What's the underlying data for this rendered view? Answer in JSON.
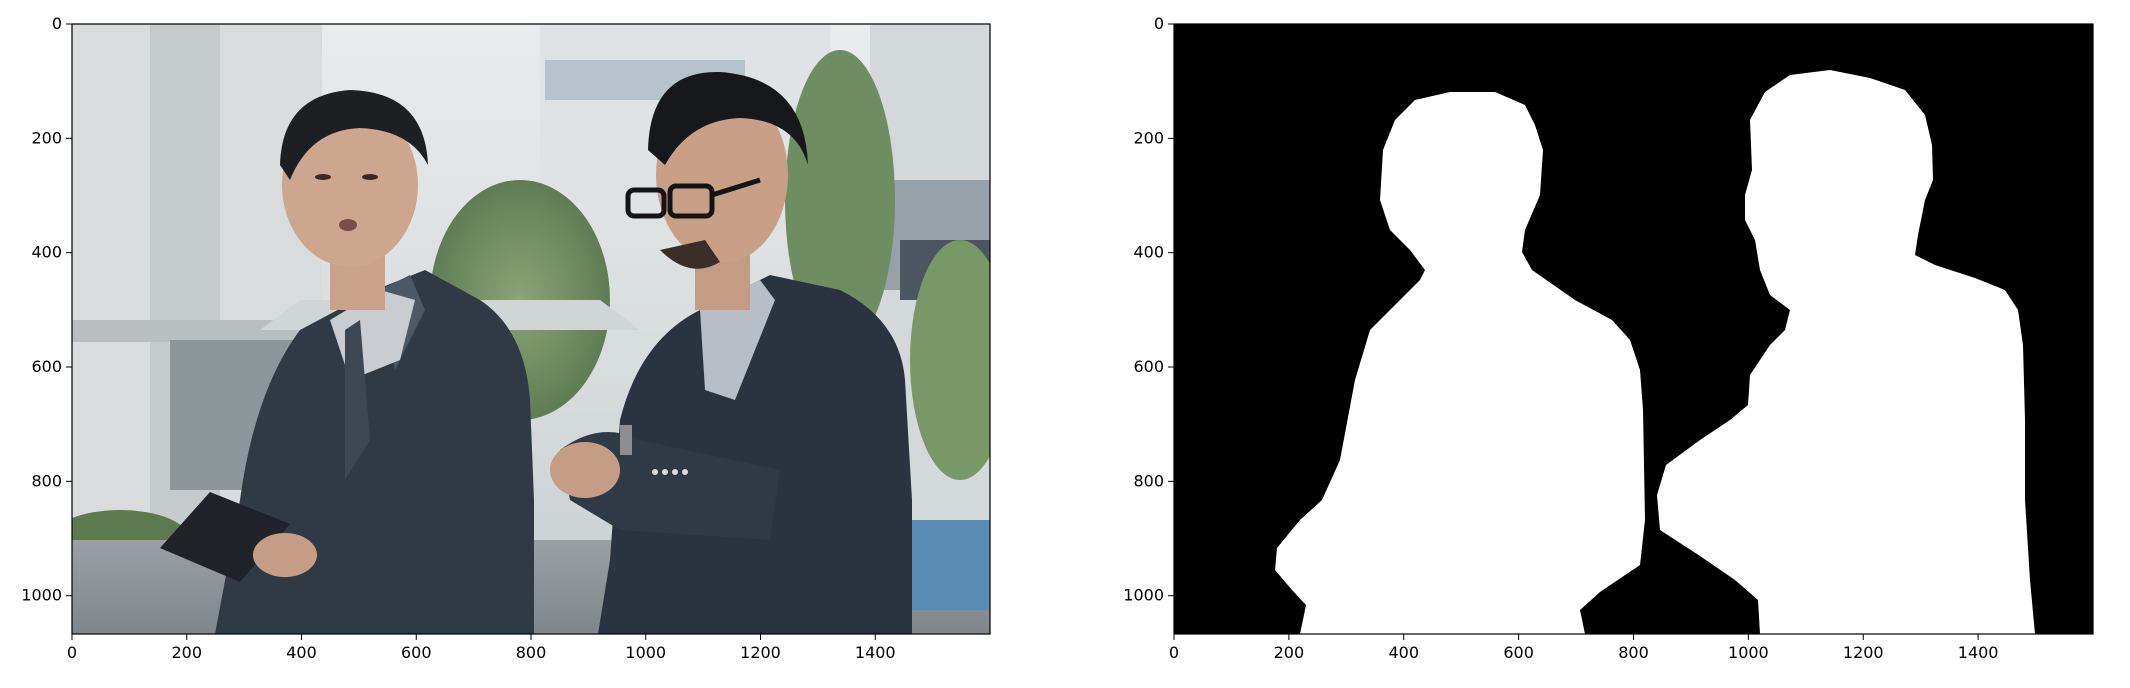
{
  "figure": {
    "panels": [
      {
        "id": "photo",
        "content": "Photograph of two men in dark suits walking outdoors; the man on the right wears glasses and checks his wristwatch",
        "x_ticks": [
          "0",
          "200",
          "400",
          "600",
          "800",
          "1000",
          "1200",
          "1400"
        ],
        "y_ticks": [
          "0",
          "200",
          "400",
          "600",
          "800",
          "1000"
        ]
      },
      {
        "id": "mask",
        "content": "Binary segmentation mask: white silhouettes of the two people on black background",
        "x_ticks": [
          "0",
          "200",
          "400",
          "600",
          "800",
          "1000",
          "1200",
          "1400"
        ],
        "y_ticks": [
          "0",
          "200",
          "400",
          "600",
          "800",
          "1000"
        ]
      }
    ],
    "colors": {
      "mask_background": "#000000",
      "mask_foreground": "#ffffff",
      "suit": "#2b3540",
      "skin": "#c9a489",
      "hair": "#17181b",
      "building": "#d7dbdd",
      "foliage": "#6f8a5f",
      "ground": "#8e9398"
    }
  }
}
